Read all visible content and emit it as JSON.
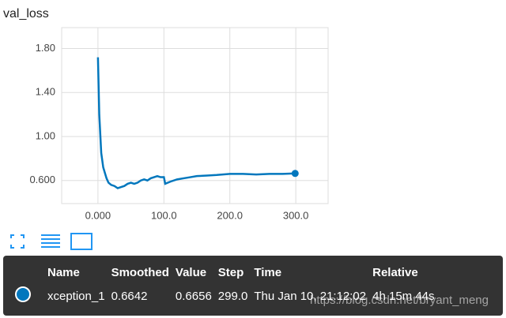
{
  "chart_data": {
    "type": "line",
    "title": "val_loss",
    "x": [
      0,
      2,
      5,
      8,
      10,
      13,
      16,
      20,
      25,
      30,
      35,
      40,
      45,
      50,
      55,
      60,
      65,
      70,
      75,
      80,
      85,
      90,
      95,
      100,
      102,
      110,
      120,
      130,
      140,
      150,
      165,
      180,
      200,
      220,
      240,
      260,
      280,
      299
    ],
    "series": [
      {
        "name": "xception_1",
        "color": "#0277bd",
        "values": [
          1.72,
          1.2,
          0.85,
          0.72,
          0.68,
          0.62,
          0.58,
          0.56,
          0.55,
          0.53,
          0.54,
          0.55,
          0.57,
          0.58,
          0.57,
          0.58,
          0.6,
          0.61,
          0.6,
          0.62,
          0.63,
          0.64,
          0.63,
          0.63,
          0.57,
          0.59,
          0.61,
          0.62,
          0.63,
          0.64,
          0.645,
          0.65,
          0.66,
          0.66,
          0.655,
          0.66,
          0.66,
          0.6642
        ]
      }
    ],
    "xlim": [
      -55,
      349
    ],
    "ylim": [
      0.39,
      1.99
    ],
    "xticks": [
      {
        "value": 0,
        "label": "0.000"
      },
      {
        "value": 100,
        "label": "100.0"
      },
      {
        "value": 200,
        "label": "200.0"
      },
      {
        "value": 300,
        "label": "300.0"
      }
    ],
    "yticks": [
      {
        "value": 0.6,
        "label": "0.600"
      },
      {
        "value": 1.0,
        "label": "1.00"
      },
      {
        "value": 1.4,
        "label": "1.40"
      },
      {
        "value": 1.8,
        "label": "1.80"
      }
    ],
    "grid": true
  },
  "tooltip": {
    "headers": [
      "Name",
      "Smoothed",
      "Value",
      "Step",
      "Time",
      "Relative"
    ],
    "rows": [
      [
        "xception_1",
        "0.6642",
        "0.6656",
        "299.0",
        "Thu Jan 10, 21:12:02",
        "4h 15m 44s"
      ]
    ]
  },
  "watermark": "https://blog.csdn.net/bryant_meng"
}
